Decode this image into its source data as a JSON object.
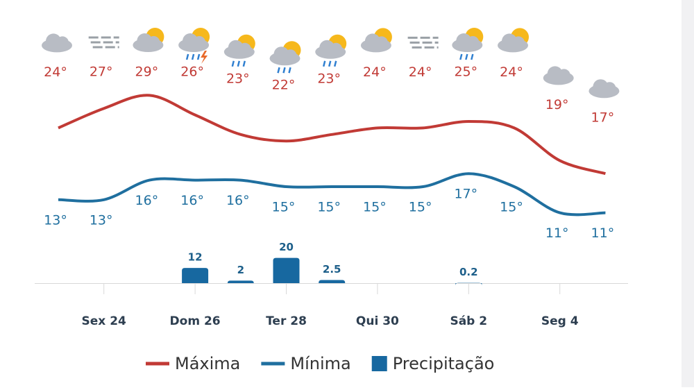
{
  "chart_data": {
    "type": "line",
    "categories": [
      null,
      "Sex 24",
      null,
      "Dom 26",
      null,
      "Ter 28",
      null,
      "Qui 30",
      null,
      "Sáb 2",
      null,
      "Seg 4",
      null
    ],
    "series": [
      {
        "name": "Máxima",
        "color": "#c13a35",
        "values": [
          24,
          27,
          29,
          26,
          23,
          22,
          23,
          24,
          24,
          25,
          24,
          19,
          17
        ]
      },
      {
        "name": "Mínima",
        "color": "#1f6f9f",
        "values": [
          13,
          13,
          16,
          16,
          16,
          15,
          15,
          15,
          15,
          17,
          15,
          11,
          11
        ]
      },
      {
        "name": "Precipitação",
        "color": "#1768a0",
        "type": "bar",
        "axis": "y2",
        "values": [
          null,
          null,
          null,
          12,
          2,
          20,
          2.5,
          null,
          null,
          0.2,
          null,
          null,
          null
        ]
      }
    ],
    "ylim": [
      10,
      30
    ],
    "y2lim": [
      0,
      22
    ]
  }
}
